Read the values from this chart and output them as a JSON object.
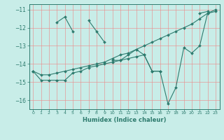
{
  "xlabel": "Humidex (Indice chaleur)",
  "bg_color": "#c8ede8",
  "line_color": "#2e7b6e",
  "grid_color": "#e89090",
  "xlim": [
    -0.5,
    23.5
  ],
  "ylim": [
    -16.5,
    -10.7
  ],
  "yticks": [
    -16,
    -15,
    -14,
    -13,
    -12,
    -11
  ],
  "xticks": [
    0,
    1,
    2,
    3,
    4,
    5,
    6,
    7,
    8,
    9,
    10,
    11,
    12,
    13,
    14,
    15,
    16,
    17,
    18,
    19,
    20,
    21,
    22,
    23
  ],
  "series": [
    [
      null,
      null,
      null,
      -11.7,
      -11.4,
      -12.2,
      null,
      -11.6,
      -12.2,
      -12.8,
      null,
      null,
      null,
      null,
      null,
      null,
      null,
      null,
      null,
      null,
      null,
      -11.2,
      -11.1,
      null
    ],
    [
      -14.4,
      null,
      null,
      null,
      null,
      null,
      null,
      null,
      null,
      null,
      -13.8,
      -13.8,
      -13.5,
      -13.2,
      -13.5,
      -14.4,
      -14.4,
      null,
      null,
      null,
      null,
      null,
      null,
      null
    ],
    [
      -14.4,
      -14.6,
      -14.6,
      -14.5,
      -14.4,
      -14.3,
      -14.2,
      -14.1,
      -14.0,
      -13.9,
      -13.7,
      -13.5,
      -13.4,
      -13.2,
      -13.0,
      -12.8,
      -12.6,
      -12.4,
      -12.2,
      -12.0,
      -11.8,
      -11.5,
      -11.2,
      -11.0
    ],
    [
      -14.4,
      -14.9,
      -14.9,
      -14.9,
      -14.9,
      -14.5,
      -14.4,
      -14.2,
      -14.1,
      -14.0,
      -13.9,
      -13.8,
      -13.7,
      -13.6,
      -13.5,
      -14.4,
      -14.4,
      -16.2,
      -15.3,
      -13.1,
      -13.4,
      -13.0,
      -11.2,
      -11.1
    ]
  ]
}
